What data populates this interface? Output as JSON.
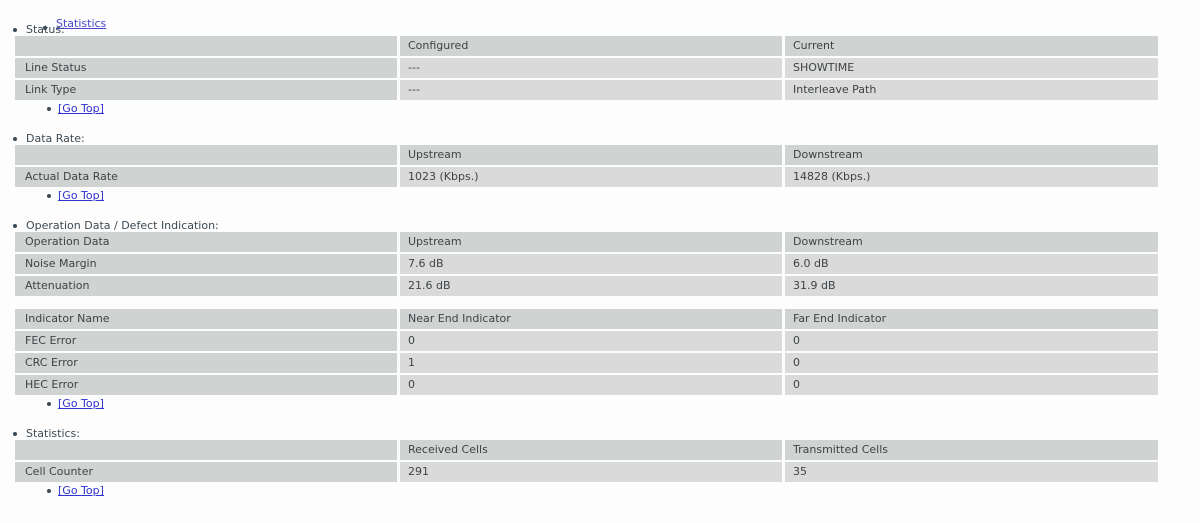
{
  "page": {
    "top_nav_link": "Statistics",
    "go_top_label": "[Go Top]",
    "colors": {
      "header_cell_bg": "#cfd3d1",
      "data_cell_bg": "#d9dad9",
      "link_blue": "#2e32cf",
      "visited_link": "#4b46cf",
      "heading_text": "#3d4a54",
      "cell_text": "#3e4347",
      "page_bg": "#fdfdfd"
    }
  },
  "sections": [
    {
      "title": "Status:",
      "tables": [
        {
          "headers": [
            "",
            "Configured",
            "Current"
          ],
          "rows": [
            [
              "Line Status",
              "---",
              "SHOWTIME"
            ],
            [
              "Link Type",
              "---",
              "Interleave Path"
            ]
          ]
        }
      ]
    },
    {
      "title": "Data Rate:",
      "tables": [
        {
          "headers": [
            "",
            "Upstream",
            "Downstream"
          ],
          "rows": [
            [
              "Actual Data Rate",
              "1023 (Kbps.)",
              "14828 (Kbps.)"
            ]
          ]
        }
      ]
    },
    {
      "title": "Operation Data / Defect Indication:",
      "tables": [
        {
          "headers": [
            "Operation Data",
            "Upstream",
            "Downstream"
          ],
          "rows": [
            [
              "Noise Margin",
              "7.6 dB",
              "6.0 dB"
            ],
            [
              "Attenuation",
              "21.6 dB",
              "31.9 dB"
            ]
          ]
        },
        {
          "headers": [
            "Indicator Name",
            "Near End Indicator",
            "Far End Indicator"
          ],
          "rows": [
            [
              "FEC Error",
              "0",
              "0"
            ],
            [
              "CRC Error",
              "1",
              "0"
            ],
            [
              "HEC Error",
              "0",
              "0"
            ]
          ]
        }
      ]
    },
    {
      "title": "Statistics:",
      "tables": [
        {
          "headers": [
            "",
            "Received Cells",
            "Transmitted Cells"
          ],
          "rows": [
            [
              "Cell Counter",
              "291",
              "35"
            ]
          ]
        }
      ]
    }
  ]
}
